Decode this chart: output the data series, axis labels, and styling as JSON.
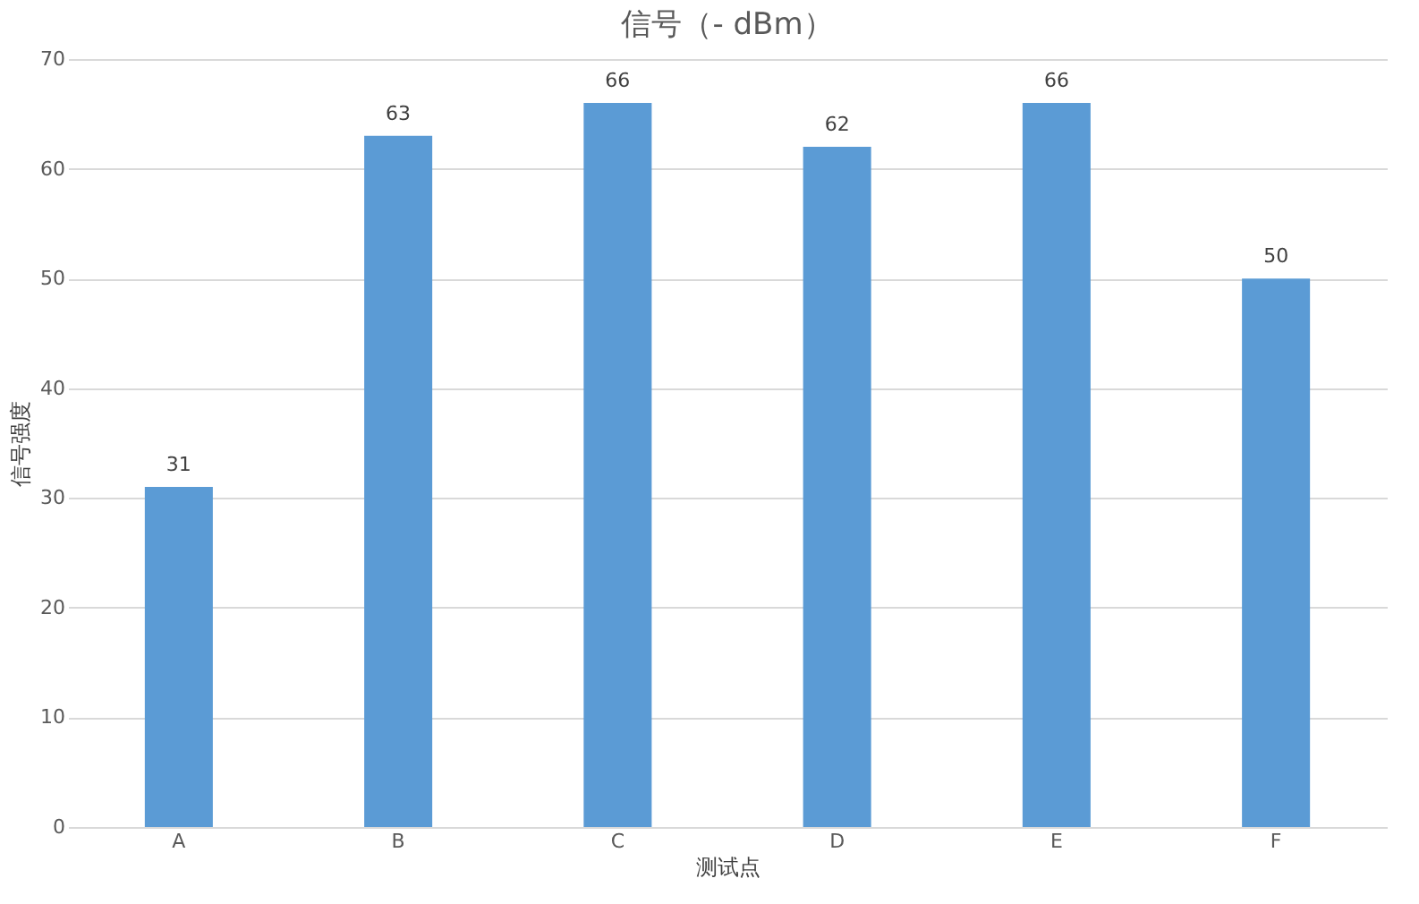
{
  "chart_data": {
    "type": "bar",
    "title": "信号（- dBm）",
    "xlabel": "测试点",
    "ylabel": "信号强度",
    "categories": [
      "A",
      "B",
      "C",
      "D",
      "E",
      "F"
    ],
    "values": [
      31,
      63,
      66,
      62,
      66,
      50
    ],
    "color": "#5b9bd5",
    "ylim": [
      0,
      70
    ],
    "yticks": [
      0,
      10,
      20,
      30,
      40,
      50,
      60,
      70
    ],
    "grid": "y",
    "data_labels": true
  }
}
